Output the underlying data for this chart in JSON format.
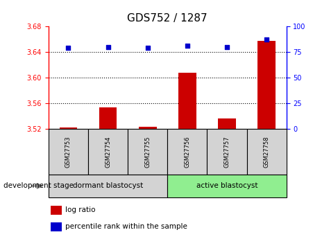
{
  "title": "GDS752 / 1287",
  "samples": [
    "GSM27753",
    "GSM27754",
    "GSM27755",
    "GSM27756",
    "GSM27757",
    "GSM27758"
  ],
  "log_ratio": [
    3.523,
    3.554,
    3.524,
    3.608,
    3.536,
    3.657
  ],
  "percentile_rank": [
    79,
    80,
    79,
    81,
    80,
    87
  ],
  "ylim_left": [
    3.52,
    3.68
  ],
  "ylim_right": [
    0,
    100
  ],
  "yticks_left": [
    3.52,
    3.56,
    3.6,
    3.64,
    3.68
  ],
  "yticks_right": [
    0,
    25,
    50,
    75,
    100
  ],
  "bar_color": "#cc0000",
  "dot_color": "#0000cc",
  "group1_label": "dormant blastocyst",
  "group2_label": "active blastocyst",
  "group1_color": "#d3d3d3",
  "group2_color": "#90ee90",
  "group1_indices": [
    0,
    1,
    2
  ],
  "group2_indices": [
    3,
    4,
    5
  ],
  "dev_stage_label": "development stage",
  "legend_bar": "log ratio",
  "legend_dot": "percentile rank within the sample",
  "baseline": 3.52,
  "dotgrid_lines": [
    3.64,
    3.6,
    3.56
  ]
}
